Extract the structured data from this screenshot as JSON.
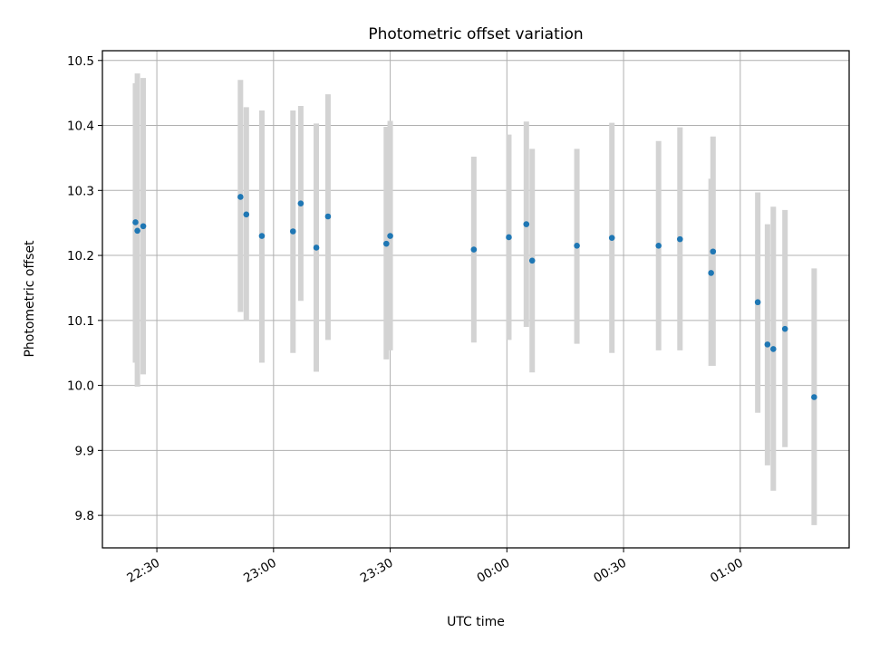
{
  "chart_data": {
    "type": "scatter",
    "title": "Photometric offset variation",
    "xlabel": "UTC time",
    "ylabel": "Photometric offset",
    "ylim": [
      9.75,
      10.515
    ],
    "xlim": [
      "22:16",
      "01:28"
    ],
    "grid": true,
    "x_ticks": [
      "22:30",
      "23:00",
      "23:30",
      "00:00",
      "00:30",
      "01:00"
    ],
    "y_ticks": [
      9.8,
      9.9,
      10.0,
      10.1,
      10.2,
      10.3,
      10.4,
      10.5
    ],
    "y_tick_labels": [
      "9.8",
      "9.9",
      "10.0",
      "10.1",
      "10.2",
      "10.3",
      "10.4",
      "10.5"
    ],
    "colors": {
      "point": "#1f77b4",
      "errorbar": "#d3d3d3",
      "grid": "#b0b0b0"
    },
    "series": [
      {
        "points": [
          {
            "t": "22:24:30",
            "y": 10.251,
            "lo": 10.035,
            "hi": 10.465
          },
          {
            "t": "22:25:00",
            "y": 10.238,
            "lo": 9.998,
            "hi": 10.48
          },
          {
            "t": "22:26:30",
            "y": 10.245,
            "lo": 10.017,
            "hi": 10.473
          },
          {
            "t": "22:51:30",
            "y": 10.29,
            "lo": 10.113,
            "hi": 10.47
          },
          {
            "t": "22:53:00",
            "y": 10.263,
            "lo": 10.1,
            "hi": 10.428
          },
          {
            "t": "22:57:00",
            "y": 10.23,
            "lo": 10.035,
            "hi": 10.423
          },
          {
            "t": "23:05:00",
            "y": 10.237,
            "lo": 10.05,
            "hi": 10.423
          },
          {
            "t": "23:07:00",
            "y": 10.28,
            "lo": 10.13,
            "hi": 10.43
          },
          {
            "t": "23:11:00",
            "y": 10.212,
            "lo": 10.021,
            "hi": 10.403
          },
          {
            "t": "23:14:00",
            "y": 10.26,
            "lo": 10.07,
            "hi": 10.448
          },
          {
            "t": "23:29:00",
            "y": 10.218,
            "lo": 10.04,
            "hi": 10.398
          },
          {
            "t": "23:30:00",
            "y": 10.23,
            "lo": 10.054,
            "hi": 10.407
          },
          {
            "t": "23:51:30",
            "y": 10.209,
            "lo": 10.066,
            "hi": 10.352
          },
          {
            "t": "00:00:30",
            "y": 10.228,
            "lo": 10.07,
            "hi": 10.386
          },
          {
            "t": "00:05:00",
            "y": 10.248,
            "lo": 10.09,
            "hi": 10.406
          },
          {
            "t": "00:06:30",
            "y": 10.192,
            "lo": 10.02,
            "hi": 10.364
          },
          {
            "t": "00:18:00",
            "y": 10.215,
            "lo": 10.064,
            "hi": 10.364
          },
          {
            "t": "00:27:00",
            "y": 10.227,
            "lo": 10.05,
            "hi": 10.404
          },
          {
            "t": "00:39:00",
            "y": 10.215,
            "lo": 10.054,
            "hi": 10.376
          },
          {
            "t": "00:44:30",
            "y": 10.225,
            "lo": 10.054,
            "hi": 10.397
          },
          {
            "t": "00:52:30",
            "y": 10.173,
            "lo": 10.03,
            "hi": 10.318
          },
          {
            "t": "00:53:00",
            "y": 10.206,
            "lo": 10.03,
            "hi": 10.383
          },
          {
            "t": "01:04:30",
            "y": 10.128,
            "lo": 9.958,
            "hi": 10.297
          },
          {
            "t": "01:07:00",
            "y": 10.063,
            "lo": 9.877,
            "hi": 10.248
          },
          {
            "t": "01:08:30",
            "y": 10.056,
            "lo": 9.838,
            "hi": 10.275
          },
          {
            "t": "01:11:30",
            "y": 10.087,
            "lo": 9.905,
            "hi": 10.27
          },
          {
            "t": "01:19:00",
            "y": 9.982,
            "lo": 9.785,
            "hi": 10.18
          }
        ]
      }
    ]
  }
}
